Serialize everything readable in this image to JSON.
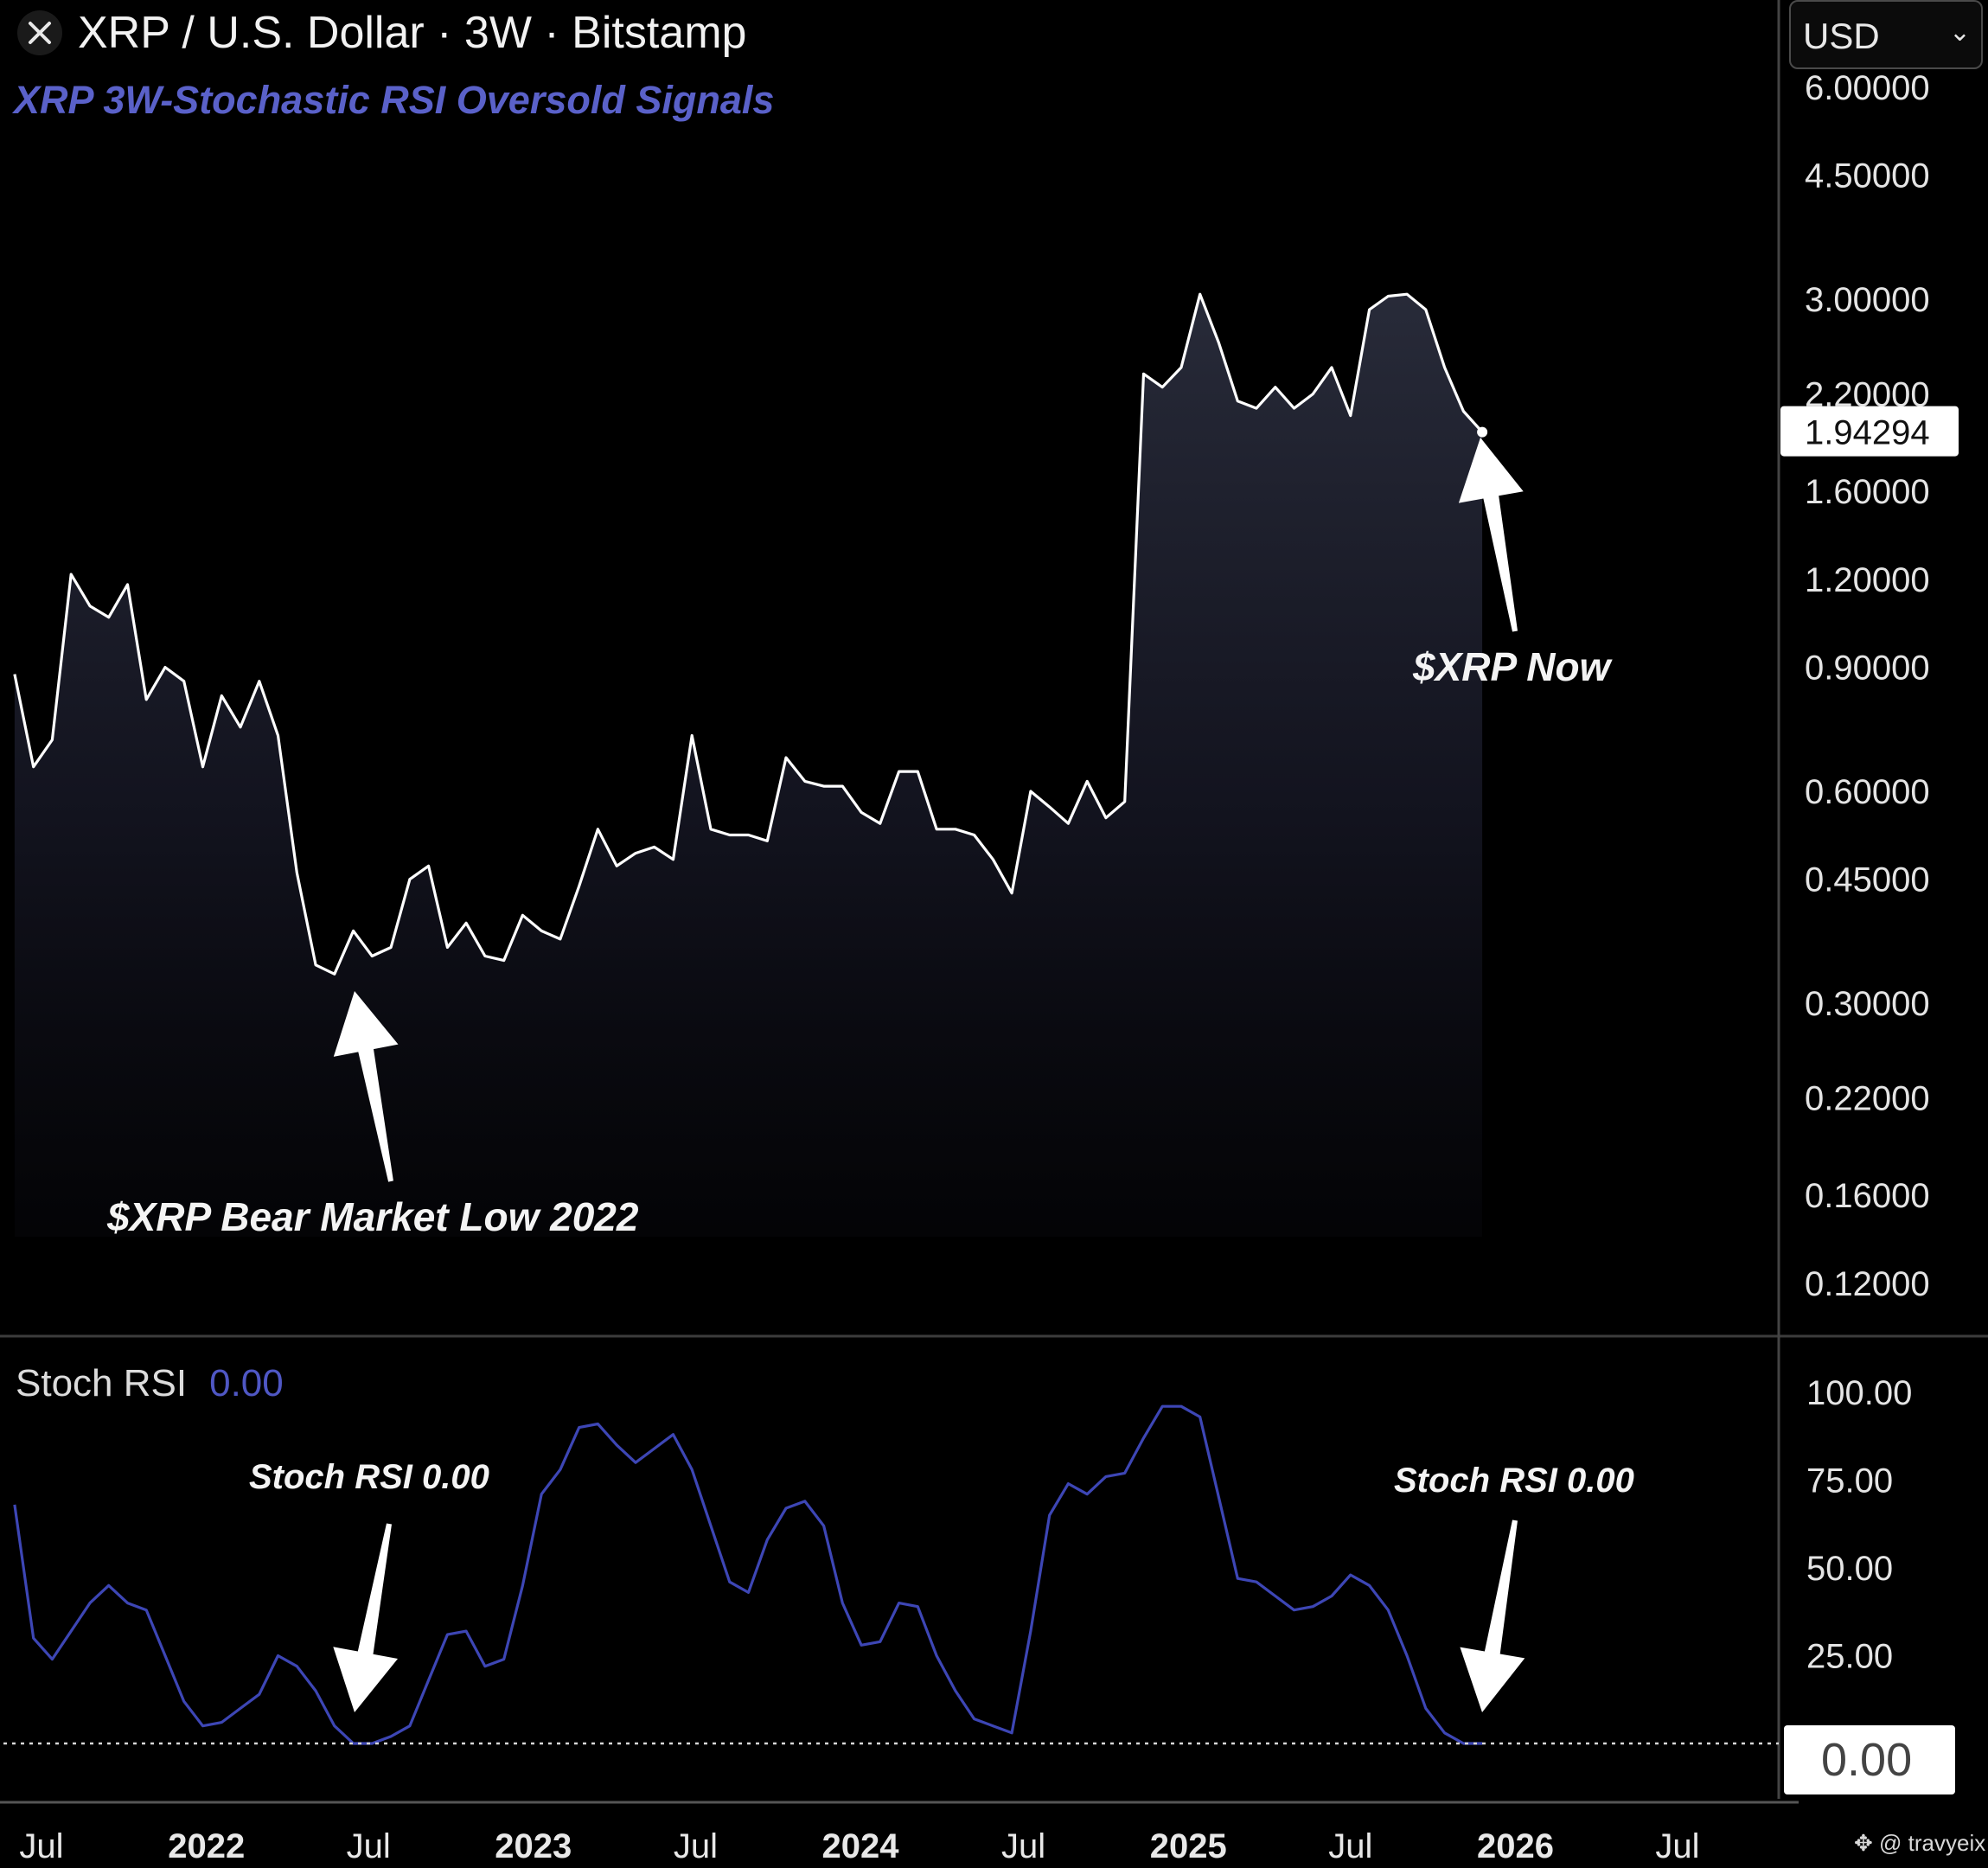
{
  "header": {
    "title": "XRP / U.S. Dollar · 3W · Bitstamp",
    "subtitle": "XRP 3W-Stochastic RSI Oversold Signals",
    "currency": "USD"
  },
  "rsi_panel": {
    "label": "Stoch RSI",
    "value": "0.00"
  },
  "annotations": {
    "bear_low": "$XRP Bear Market Low 2022",
    "now": "$XRP Now",
    "rsi_left": "Stoch RSI 0.00",
    "rsi_right": "Stoch RSI 0.00"
  },
  "watermark": "@ travyeix",
  "colors": {
    "price_line": "#ffffff",
    "rsi_line": "#3d46b5",
    "subtitle": "#5a61c9",
    "background": "#000000"
  },
  "icons": {
    "close": "close-icon",
    "arrow": "arrow-icon",
    "watermark": "logo-icon"
  },
  "chart_data": [
    {
      "type": "area",
      "title": "XRP / U.S. Dollar · 3W · Bitstamp",
      "y_scale": "log",
      "ylim": [
        0.1,
        6.0
      ],
      "y_ticks": [
        "6.00000",
        "4.50000",
        "3.00000",
        "2.20000",
        "1.60000",
        "1.20000",
        "0.90000",
        "0.60000",
        "0.45000",
        "0.30000",
        "0.22000",
        "0.16000",
        "0.12000"
      ],
      "last_price": "1.94294",
      "x_ticks": [
        "Jul",
        "2022",
        "Jul",
        "2023",
        "Jul",
        "2024",
        "Jul",
        "2025",
        "Jul",
        "2026",
        "Jul"
      ],
      "series": [
        {
          "x": [
            "2021-06-01",
            "2021-06-22",
            "2021-07-13",
            "2021-08-03",
            "2021-08-24",
            "2021-09-14",
            "2021-10-05",
            "2021-10-26",
            "2021-11-16",
            "2021-12-07",
            "2021-12-28",
            "2022-01-18",
            "2022-02-08",
            "2022-03-01",
            "2022-03-22",
            "2022-04-12",
            "2022-05-03",
            "2022-05-24",
            "2022-06-14",
            "2022-07-05",
            "2022-07-26",
            "2022-08-16",
            "2022-09-06",
            "2022-09-27",
            "2022-10-18",
            "2022-11-08",
            "2022-11-29",
            "2022-12-20",
            "2023-01-10",
            "2023-01-31",
            "2023-02-21",
            "2023-03-14",
            "2023-04-04",
            "2023-04-25",
            "2023-05-16",
            "2023-06-06",
            "2023-06-27",
            "2023-07-18",
            "2023-08-08",
            "2023-08-29",
            "2023-09-19",
            "2023-10-10",
            "2023-10-31",
            "2023-11-21",
            "2023-12-12",
            "2024-01-02",
            "2024-01-23",
            "2024-02-13",
            "2024-03-05",
            "2024-03-26",
            "2024-04-16",
            "2024-05-07",
            "2024-05-28",
            "2024-06-18",
            "2024-07-09",
            "2024-07-30",
            "2024-08-20",
            "2024-09-10",
            "2024-10-01",
            "2024-10-22",
            "2024-11-12",
            "2024-12-03",
            "2024-12-24",
            "2025-01-14",
            "2025-02-04",
            "2025-02-25",
            "2025-03-18",
            "2025-04-08",
            "2025-04-29",
            "2025-05-20",
            "2025-06-10",
            "2025-07-01",
            "2025-07-22",
            "2025-08-12",
            "2025-09-02",
            "2025-09-23",
            "2025-10-14",
            "2025-11-04",
            "2025-11-25"
          ],
          "values": [
            0.88,
            0.65,
            0.71,
            1.22,
            1.1,
            1.06,
            1.18,
            0.81,
            0.9,
            0.86,
            0.65,
            0.82,
            0.74,
            0.86,
            0.72,
            0.46,
            0.34,
            0.33,
            0.38,
            0.35,
            0.36,
            0.45,
            0.47,
            0.36,
            0.39,
            0.35,
            0.345,
            0.4,
            0.38,
            0.37,
            0.44,
            0.53,
            0.47,
            0.49,
            0.5,
            0.48,
            0.72,
            0.53,
            0.52,
            0.52,
            0.51,
            0.67,
            0.62,
            0.61,
            0.61,
            0.56,
            0.54,
            0.64,
            0.64,
            0.53,
            0.53,
            0.52,
            0.48,
            0.43,
            0.6,
            0.57,
            0.54,
            0.62,
            0.55,
            0.58,
            2.35,
            2.25,
            2.4,
            3.05,
            2.6,
            2.15,
            2.1,
            2.25,
            2.1,
            2.2,
            2.4,
            2.05,
            2.9,
            3.03,
            3.05,
            2.9,
            2.4,
            2.08,
            1.94294
          ]
        }
      ]
    },
    {
      "type": "line",
      "title": "Stoch RSI",
      "ylim": [
        0,
        100
      ],
      "y_ticks": [
        "100.00",
        "75.00",
        "50.00",
        "25.00"
      ],
      "current_value": "0.00",
      "series": [
        {
          "x": [
            "2021-06-01",
            "2021-06-22",
            "2021-07-13",
            "2021-08-03",
            "2021-08-24",
            "2021-09-14",
            "2021-10-05",
            "2021-10-26",
            "2021-11-16",
            "2021-12-07",
            "2021-12-28",
            "2022-01-18",
            "2022-02-08",
            "2022-03-01",
            "2022-03-22",
            "2022-04-12",
            "2022-05-03",
            "2022-05-24",
            "2022-06-14",
            "2022-07-05",
            "2022-07-26",
            "2022-08-16",
            "2022-09-06",
            "2022-09-27",
            "2022-10-18",
            "2022-11-08",
            "2022-11-29",
            "2022-12-20",
            "2023-01-10",
            "2023-01-31",
            "2023-02-21",
            "2023-03-14",
            "2023-04-04",
            "2023-04-25",
            "2023-05-16",
            "2023-06-06",
            "2023-06-27",
            "2023-07-18",
            "2023-08-08",
            "2023-08-29",
            "2023-09-19",
            "2023-10-10",
            "2023-10-31",
            "2023-11-21",
            "2023-12-12",
            "2024-01-02",
            "2024-01-23",
            "2024-02-13",
            "2024-03-05",
            "2024-03-26",
            "2024-04-16",
            "2024-05-07",
            "2024-05-28",
            "2024-06-18",
            "2024-07-09",
            "2024-07-30",
            "2024-08-20",
            "2024-09-10",
            "2024-10-01",
            "2024-10-22",
            "2024-11-12",
            "2024-12-03",
            "2024-12-24",
            "2025-01-14",
            "2025-02-04",
            "2025-02-25",
            "2025-03-18",
            "2025-04-08",
            "2025-04-29",
            "2025-05-20",
            "2025-06-10",
            "2025-07-01",
            "2025-07-22",
            "2025-08-12",
            "2025-09-02",
            "2025-09-23",
            "2025-10-14",
            "2025-11-04",
            "2025-11-25"
          ],
          "values": [
            68,
            30,
            24,
            32,
            40,
            45,
            40,
            38,
            25,
            12,
            5,
            6,
            10,
            14,
            25,
            22,
            15,
            5,
            0,
            0,
            2,
            5,
            18,
            31,
            32,
            22,
            24,
            45,
            71,
            78,
            90,
            91,
            85,
            80,
            84,
            88,
            78,
            62,
            46,
            43,
            58,
            67,
            69,
            62,
            40,
            28,
            29,
            40,
            39,
            25,
            15,
            7,
            5,
            3,
            32,
            65,
            74,
            71,
            76,
            77,
            87,
            96,
            96,
            93,
            70,
            47,
            46,
            42,
            38,
            39,
            42,
            48,
            45,
            38,
            25,
            10,
            3,
            0,
            0
          ]
        }
      ]
    }
  ]
}
